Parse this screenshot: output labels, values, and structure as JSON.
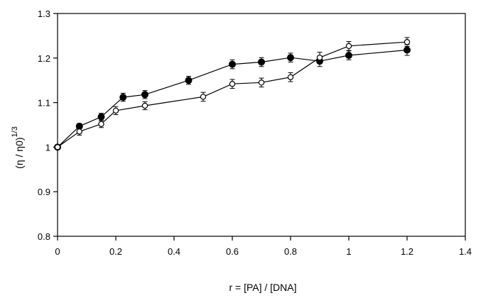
{
  "chart_data": {
    "type": "scatter",
    "title": "",
    "xlabel": "r = [PA] / [DNA]",
    "ylabel": {
      "open_paren": "(",
      "eta": "η",
      "slash": " / ",
      "eta0": "η",
      "zero": "0",
      "close_paren": ")",
      "exponent": "1/3"
    },
    "xlim": [
      0,
      1.4
    ],
    "ylim": [
      0.8,
      1.3
    ],
    "x_ticks": [
      0,
      0.2,
      0.4,
      0.6,
      0.8,
      1,
      1.2,
      1.4
    ],
    "y_ticks": [
      0.8,
      0.9,
      1,
      1.1,
      1.2,
      1.3
    ],
    "x_tick_labels": [
      "0",
      "0.2",
      "0.4",
      "0.6",
      "0.8",
      "1",
      "1.2",
      "1.4"
    ],
    "y_tick_labels": [
      "0.8",
      "0.9",
      "1",
      "1.1",
      "1.2",
      "1.3"
    ],
    "grid": false,
    "legend": "none",
    "series": [
      {
        "name": "filled",
        "marker": "filled-circle",
        "color": "#000000",
        "x": [
          0,
          0.075,
          0.15,
          0.225,
          0.3,
          0.45,
          0.6,
          0.7,
          0.8,
          0.9,
          1.0,
          1.2
        ],
        "y": [
          1.0,
          1.047,
          1.068,
          1.112,
          1.118,
          1.15,
          1.186,
          1.191,
          1.201,
          1.193,
          1.206,
          1.218
        ],
        "error": [
          0.005,
          0.006,
          0.008,
          0.009,
          0.009,
          0.009,
          0.01,
          0.01,
          0.01,
          0.012,
          0.01,
          0.012
        ]
      },
      {
        "name": "open",
        "marker": "open-circle",
        "color": "#000000",
        "x": [
          0,
          0.075,
          0.15,
          0.2,
          0.3,
          0.5,
          0.6,
          0.7,
          0.8,
          0.9,
          1.0,
          1.2
        ],
        "y": [
          1.0,
          1.035,
          1.052,
          1.082,
          1.093,
          1.113,
          1.142,
          1.145,
          1.157,
          1.201,
          1.227,
          1.236
        ],
        "error": [
          0.005,
          0.008,
          0.008,
          0.009,
          0.009,
          0.01,
          0.01,
          0.01,
          0.01,
          0.012,
          0.01,
          0.01
        ]
      }
    ]
  }
}
